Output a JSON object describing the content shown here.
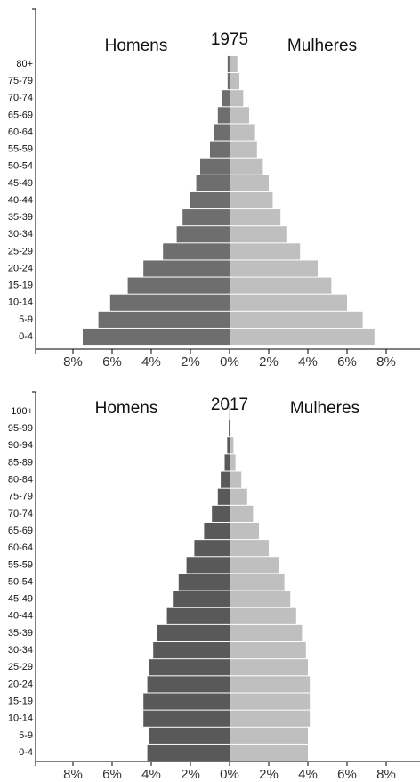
{
  "chart_data": [
    {
      "type": "pyramid",
      "title": "1975",
      "categories": [
        "0-4",
        "5-9",
        "10-14",
        "15-19",
        "20-24",
        "25-29",
        "30-34",
        "35-39",
        "40-44",
        "45-49",
        "50-54",
        "55-59",
        "60-64",
        "65-69",
        "70-74",
        "75-79",
        "80+"
      ],
      "series": [
        {
          "name": "Homens",
          "color": "#6e6e6e",
          "values": [
            -7.5,
            -6.7,
            -6.1,
            -5.2,
            -4.4,
            -3.4,
            -2.7,
            -2.4,
            -2.0,
            -1.7,
            -1.5,
            -1.0,
            -0.8,
            -0.6,
            -0.4,
            -0.1,
            -0.1
          ]
        },
        {
          "name": "Mulheres",
          "color": "#bfbfbf",
          "values": [
            7.4,
            6.8,
            6.0,
            5.2,
            4.5,
            3.6,
            2.9,
            2.6,
            2.2,
            2.0,
            1.7,
            1.4,
            1.3,
            1.0,
            0.7,
            0.5,
            0.4
          ]
        }
      ],
      "xlim": [
        -8,
        8
      ],
      "xticks": [
        {
          "value": -8,
          "label": "8%"
        },
        {
          "value": -6,
          "label": "6%"
        },
        {
          "value": -4,
          "label": "4%"
        },
        {
          "value": -2,
          "label": "2%"
        },
        {
          "value": 0,
          "label": "0%"
        },
        {
          "value": 2,
          "label": "2%"
        },
        {
          "value": 4,
          "label": "4%"
        },
        {
          "value": 6,
          "label": "6%"
        },
        {
          "value": 8,
          "label": "8%"
        }
      ]
    },
    {
      "type": "pyramid",
      "title": "2017",
      "categories": [
        "0-4",
        "5-9",
        "10-14",
        "15-19",
        "20-24",
        "25-29",
        "30-34",
        "35-39",
        "40-44",
        "45-49",
        "50-54",
        "55-59",
        "60-64",
        "65-69",
        "70-74",
        "75-79",
        "80-84",
        "85-89",
        "90-94",
        "95-99",
        "100+"
      ],
      "series": [
        {
          "name": "Homens",
          "color": "#595959",
          "values": [
            -4.2,
            -4.1,
            -4.4,
            -4.4,
            -4.2,
            -4.1,
            -3.9,
            -3.7,
            -3.2,
            -2.9,
            -2.6,
            -2.2,
            -1.8,
            -1.3,
            -0.9,
            -0.6,
            -0.45,
            -0.25,
            -0.12,
            -0.04,
            -0.01
          ]
        },
        {
          "name": "Mulheres",
          "color": "#bfbfbf",
          "values": [
            4.0,
            4.0,
            4.1,
            4.1,
            4.1,
            4.0,
            3.9,
            3.7,
            3.4,
            3.1,
            2.8,
            2.5,
            2.0,
            1.5,
            1.2,
            0.9,
            0.6,
            0.3,
            0.2,
            0.05,
            0.01
          ]
        }
      ],
      "xlim": [
        -8,
        8
      ],
      "xticks": [
        {
          "value": -8,
          "label": "8%"
        },
        {
          "value": -6,
          "label": "6%"
        },
        {
          "value": -4,
          "label": "4%"
        },
        {
          "value": -2,
          "label": "2%"
        },
        {
          "value": 0,
          "label": "0%"
        },
        {
          "value": 2,
          "label": "2%"
        },
        {
          "value": 4,
          "label": "4%"
        },
        {
          "value": 6,
          "label": "6%"
        },
        {
          "value": 8,
          "label": "8%"
        }
      ]
    }
  ]
}
